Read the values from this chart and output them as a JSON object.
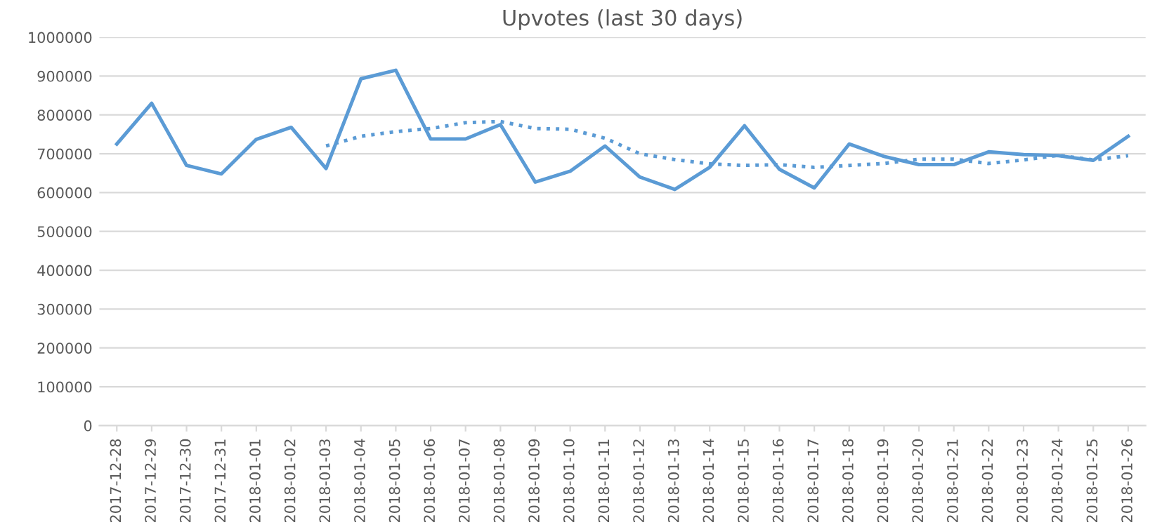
{
  "chart_data": {
    "type": "line",
    "title": "Upvotes (last 30 days)",
    "categories": [
      "2017-12-28",
      "2017-12-29",
      "2017-12-30",
      "2017-12-31",
      "2018-01-01",
      "2018-01-02",
      "2018-01-03",
      "2018-01-04",
      "2018-01-05",
      "2018-01-06",
      "2018-01-07",
      "2018-01-08",
      "2018-01-09",
      "2018-01-10",
      "2018-01-11",
      "2018-01-12",
      "2018-01-13",
      "2018-01-14",
      "2018-01-15",
      "2018-01-16",
      "2018-01-17",
      "2018-01-18",
      "2018-01-19",
      "2018-01-20",
      "2018-01-21",
      "2018-01-22",
      "2018-01-23",
      "2018-01-24",
      "2018-01-25",
      "2018-01-26"
    ],
    "series": [
      {
        "color": "#5b9bd5",
        "line_style": "solid",
        "values": [
          725000,
          830000,
          670000,
          648000,
          737000,
          768000,
          662000,
          893000,
          915000,
          738000,
          738000,
          775000,
          627000,
          655000,
          720000,
          640000,
          608000,
          665000,
          772000,
          660000,
          612000,
          725000,
          693000,
          672000,
          672000,
          705000,
          698000,
          695000,
          683000,
          745000
        ]
      },
      {
        "color": "#5b9bd5",
        "line_style": "dotted",
        "values": [
          null,
          null,
          null,
          null,
          null,
          null,
          720000,
          745000,
          757000,
          765000,
          780000,
          783000,
          765000,
          763000,
          740000,
          700000,
          685000,
          674000,
          670000,
          672000,
          665000,
          670000,
          675000,
          686000,
          686000,
          675000,
          684000,
          696000,
          684000,
          695000
        ]
      }
    ],
    "ylim": [
      0,
      1000000
    ],
    "yticks": [
      0,
      100000,
      200000,
      300000,
      400000,
      500000,
      600000,
      700000,
      800000,
      900000,
      1000000
    ],
    "grid": "y",
    "legend": false,
    "marker": "none"
  }
}
